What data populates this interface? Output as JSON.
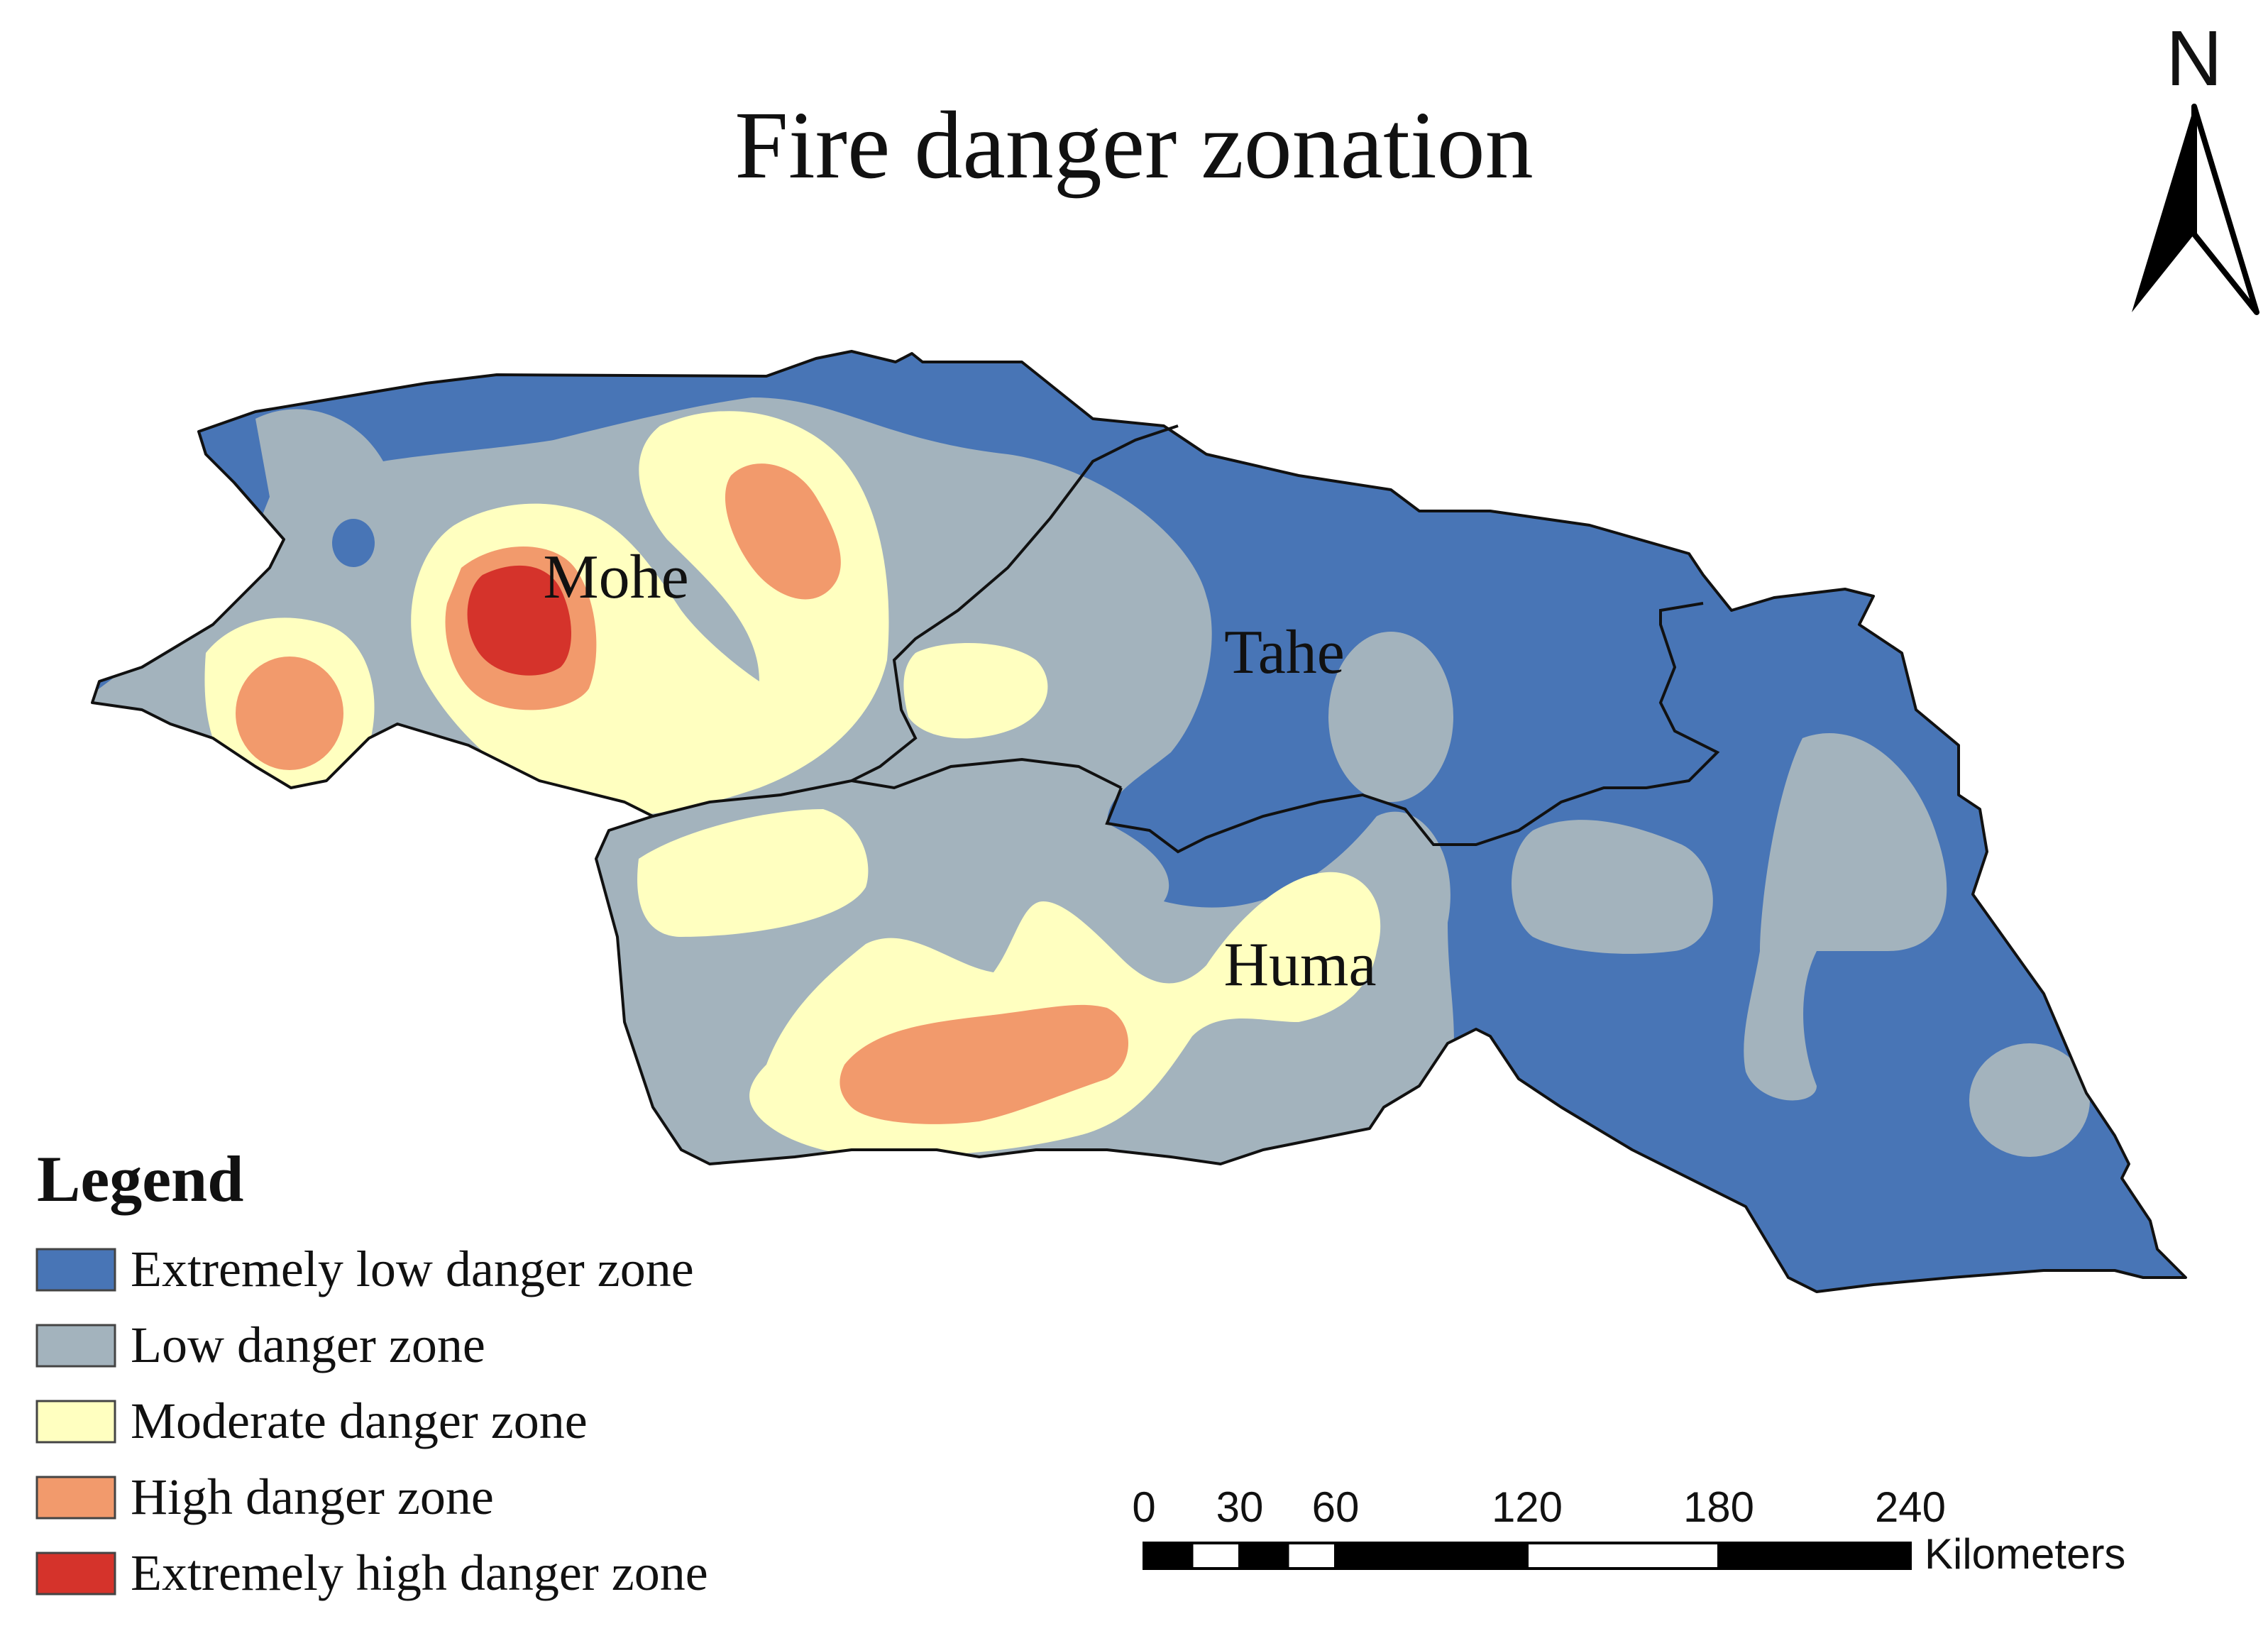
{
  "title": "Fire danger zonation",
  "north": {
    "label": "N",
    "icon": "north-arrow-icon"
  },
  "places": [
    {
      "key": "mohe",
      "name": "Mohe"
    },
    {
      "key": "tahe",
      "name": "Tahe"
    },
    {
      "key": "huma",
      "name": "Huma"
    }
  ],
  "legend": {
    "title": "Legend",
    "items": [
      {
        "label": "Extremely low danger zone",
        "color": "#4875b6"
      },
      {
        "label": "Low danger zone",
        "color": "#a3b3bd"
      },
      {
        "label": "Moderate danger zone",
        "color": "#ffffc0"
      },
      {
        "label": "High danger zone",
        "color": "#f29a6c"
      },
      {
        "label": "Extremely high danger zone",
        "color": "#d5332b"
      }
    ]
  },
  "scale_bar": {
    "ticks": [
      "0",
      "30",
      "60",
      "120",
      "180",
      "240"
    ],
    "tick_values_km": [
      0,
      30,
      60,
      120,
      180,
      240
    ],
    "unit": "Kilometers"
  }
}
